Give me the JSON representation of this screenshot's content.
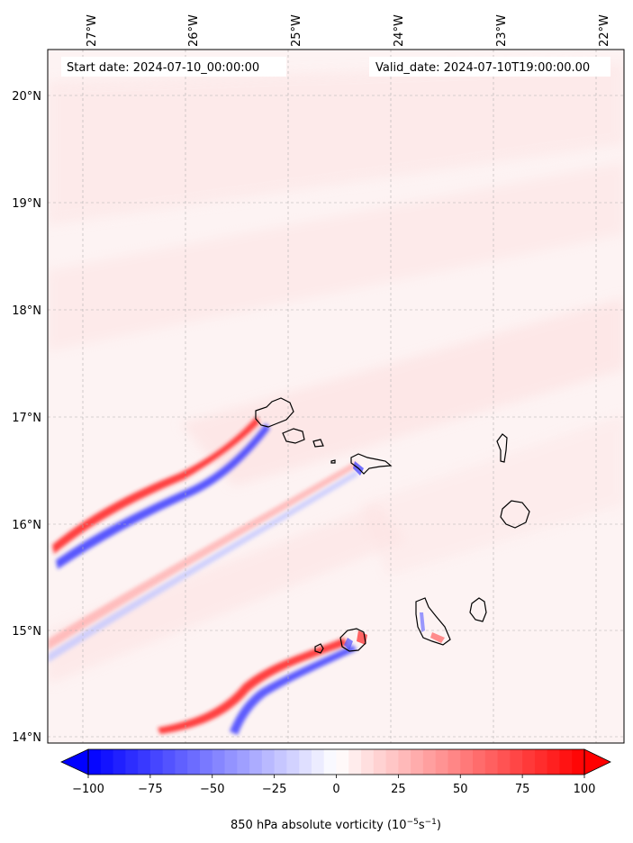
{
  "header": {
    "start_date": "Start date: 2024-07-10_00:00:00",
    "valid_date": "Valid_date: 2024-07-10T19:00:00.00"
  },
  "map": {
    "region": "Cape Verde islands",
    "lon_ticks": [
      {
        "value": -27,
        "label": "27°W"
      },
      {
        "value": -26,
        "label": "26°W"
      },
      {
        "value": -25,
        "label": "25°W"
      },
      {
        "value": -24,
        "label": "24°W"
      },
      {
        "value": -23,
        "label": "23°W"
      },
      {
        "value": -22,
        "label": "22°W"
      }
    ],
    "lat_ticks": [
      {
        "value": 20,
        "label": "20°N"
      },
      {
        "value": 19,
        "label": "19°N"
      },
      {
        "value": 18,
        "label": "18°N"
      },
      {
        "value": 17,
        "label": "17°N"
      },
      {
        "value": 16,
        "label": "16°N"
      },
      {
        "value": 15,
        "label": "15°N"
      },
      {
        "value": 14,
        "label": "14°N"
      }
    ],
    "islands": [
      "Santo Antão",
      "São Vicente",
      "Santa Luzia",
      "São Nicolau",
      "Sal",
      "Boa Vista",
      "Maio",
      "Santiago",
      "Fogo",
      "Brava"
    ]
  },
  "colorbar": {
    "ticks": [
      {
        "value": -100,
        "label": "−100"
      },
      {
        "value": -75,
        "label": "−75"
      },
      {
        "value": -50,
        "label": "−50"
      },
      {
        "value": -25,
        "label": "−25"
      },
      {
        "value": 0,
        "label": "0"
      },
      {
        "value": 25,
        "label": "25"
      },
      {
        "value": 50,
        "label": "50"
      },
      {
        "value": 75,
        "label": "75"
      },
      {
        "value": 100,
        "label": "100"
      }
    ],
    "label_main": "850 hPa absolute vorticity (10",
    "label_exp1": "−5",
    "label_mid": "s",
    "label_exp2": "−1",
    "label_end": ")",
    "min_color": "#0000ff",
    "mid_color": "#ffffff",
    "max_color": "#ff0000"
  }
}
